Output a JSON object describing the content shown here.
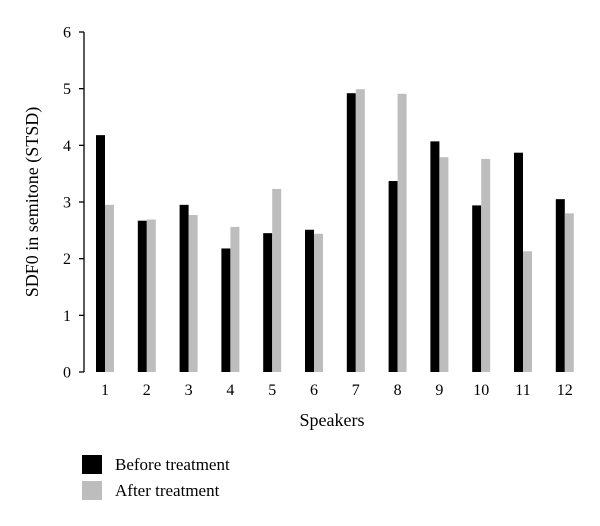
{
  "chart_data": {
    "type": "bar",
    "title": "",
    "xlabel": "Speakers",
    "ylabel": "SDF0 in semitone (STSD)",
    "categories": [
      "1",
      "2",
      "3",
      "4",
      "5",
      "6",
      "7",
      "8",
      "9",
      "10",
      "11",
      "12"
    ],
    "series": [
      {
        "name": "Before treatment",
        "color": "#000000",
        "values": [
          4.18,
          2.67,
          2.95,
          2.18,
          2.45,
          2.51,
          4.92,
          3.37,
          4.07,
          2.94,
          3.87,
          3.05
        ]
      },
      {
        "name": "After treatment",
        "color": "#bdbdbd",
        "values": [
          2.95,
          2.69,
          2.77,
          2.56,
          3.23,
          2.44,
          4.99,
          4.91,
          3.79,
          3.76,
          2.13,
          2.8
        ]
      }
    ],
    "ylim": [
      0,
      6
    ],
    "yticks": [
      "0",
      "1",
      "2",
      "3",
      "4",
      "5",
      "6"
    ],
    "grid": false,
    "legend_position": "bottom-left"
  }
}
